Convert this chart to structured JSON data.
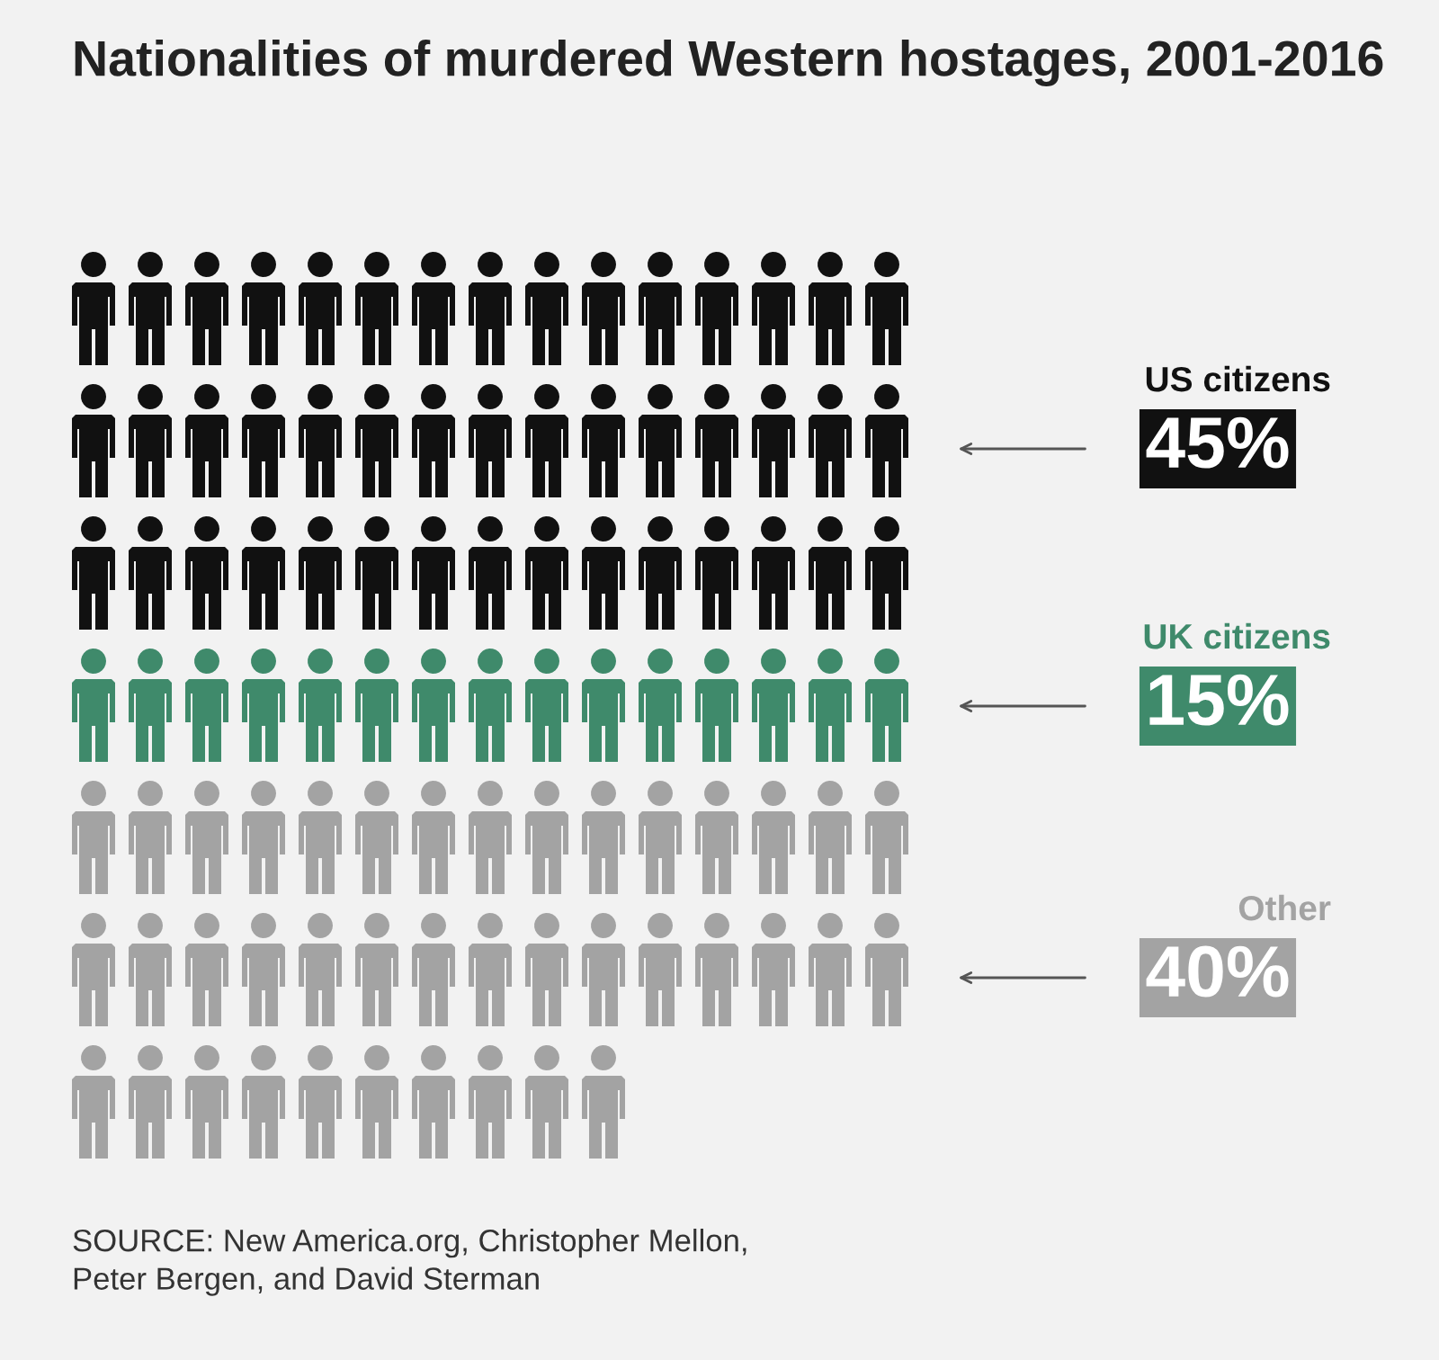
{
  "chart_data": {
    "type": "other",
    "title": "Nationalities of murdered Western hostages, 2001-2016",
    "categories": [
      "US citizens",
      "UK citizens",
      "Other"
    ],
    "values": [
      45,
      15,
      40
    ],
    "colors": [
      "#111111",
      "#3f8a6b",
      "#a3a3a3"
    ],
    "value_labels": [
      "45%",
      "15%",
      "40%"
    ],
    "annotations": [
      "SOURCE: New America.org, Christopher Mellon,\nPeter Bergen, and David Sterman"
    ]
  }
}
